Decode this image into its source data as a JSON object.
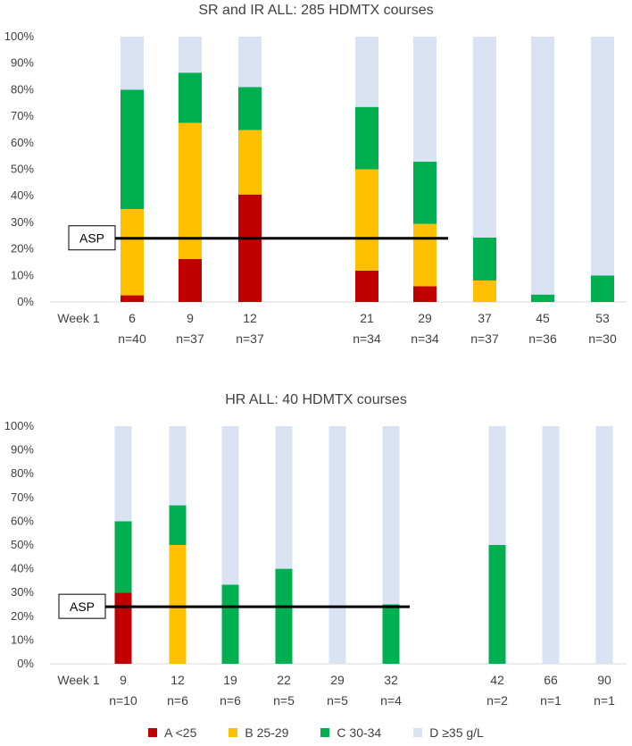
{
  "colors": {
    "A": "#c00000",
    "B": "#ffc000",
    "C": "#00b050",
    "D": "#dae3f3",
    "axis": "#d9d9d9",
    "text": "#404040",
    "asp_line": "#000000"
  },
  "legend": [
    {
      "key": "A",
      "label": "A <25"
    },
    {
      "key": "B",
      "label": "B 25-29"
    },
    {
      "key": "C",
      "label": "C 30-34"
    },
    {
      "key": "D",
      "label": "D ≥35 g/L"
    }
  ],
  "chart_data": [
    {
      "type": "bar",
      "stacked": true,
      "title": "SR and IR ALL: 285 HDMTX courses",
      "ylim": [
        0,
        100
      ],
      "yticks": [
        "0%",
        "10%",
        "20%",
        "30%",
        "40%",
        "50%",
        "60%",
        "70%",
        "80%",
        "90%",
        "100%"
      ],
      "week_label": "Week 1",
      "categories": [
        "Week 1",
        "6",
        "9",
        "12",
        "",
        "21",
        "29",
        "37",
        "45",
        "53"
      ],
      "n_labels": [
        "",
        "n=40",
        "n=37",
        "n=37",
        "",
        "n=34",
        "n=34",
        "n=37",
        "n=36",
        "n=30"
      ],
      "series": [
        {
          "name": "A <25",
          "key": "A",
          "values": [
            0,
            2.5,
            16.2,
            40.5,
            0,
            11.8,
            5.9,
            0,
            0,
            0
          ]
        },
        {
          "name": "B 25-29",
          "key": "B",
          "values": [
            0,
            32.5,
            51.3,
            24.3,
            0,
            38.2,
            23.5,
            8.1,
            0,
            0
          ]
        },
        {
          "name": "C 30-34",
          "key": "C",
          "values": [
            0,
            45,
            18.9,
            16.2,
            0,
            23.5,
            23.5,
            16.2,
            2.8,
            10
          ]
        },
        {
          "name": "D ≥35 g/L",
          "key": "D",
          "values": [
            0,
            20,
            13.6,
            19,
            0,
            26.5,
            47.1,
            75.7,
            97.2,
            90
          ]
        }
      ],
      "annotation": {
        "label": "ASP",
        "value": 24,
        "from_index": 0,
        "to_index": 6
      }
    },
    {
      "type": "bar",
      "stacked": true,
      "title": "HR ALL: 40 HDMTX courses",
      "ylim": [
        0,
        100
      ],
      "yticks": [
        "0%",
        "10%",
        "20%",
        "30%",
        "40%",
        "50%",
        "60%",
        "70%",
        "80%",
        "90%",
        "100%"
      ],
      "week_label": "Week 1",
      "categories": [
        "Week 1",
        "9",
        "12",
        "19",
        "22",
        "29",
        "32",
        "",
        "42",
        "66",
        "90"
      ],
      "n_labels": [
        "",
        "n=10",
        "n=6",
        "n=6",
        "n=5",
        "n=5",
        "n=4",
        "",
        "n=2",
        "n=1",
        "n=1"
      ],
      "series": [
        {
          "name": "A <25",
          "key": "A",
          "values": [
            0,
            30,
            0,
            0,
            0,
            0,
            0,
            0,
            0,
            0,
            0
          ]
        },
        {
          "name": "B 25-29",
          "key": "B",
          "values": [
            0,
            0,
            50,
            0,
            0,
            0,
            0,
            0,
            0,
            0,
            0
          ]
        },
        {
          "name": "C 30-34",
          "key": "C",
          "values": [
            0,
            30,
            16.7,
            33.3,
            40,
            0,
            25,
            0,
            50,
            0,
            0
          ]
        },
        {
          "name": "D ≥35 g/L",
          "key": "D",
          "values": [
            0,
            40,
            33.3,
            66.7,
            60,
            100,
            75,
            0,
            50,
            100,
            100
          ]
        }
      ],
      "annotation": {
        "label": "ASP",
        "value": 24,
        "from_index": 0,
        "to_index": 6
      }
    }
  ]
}
